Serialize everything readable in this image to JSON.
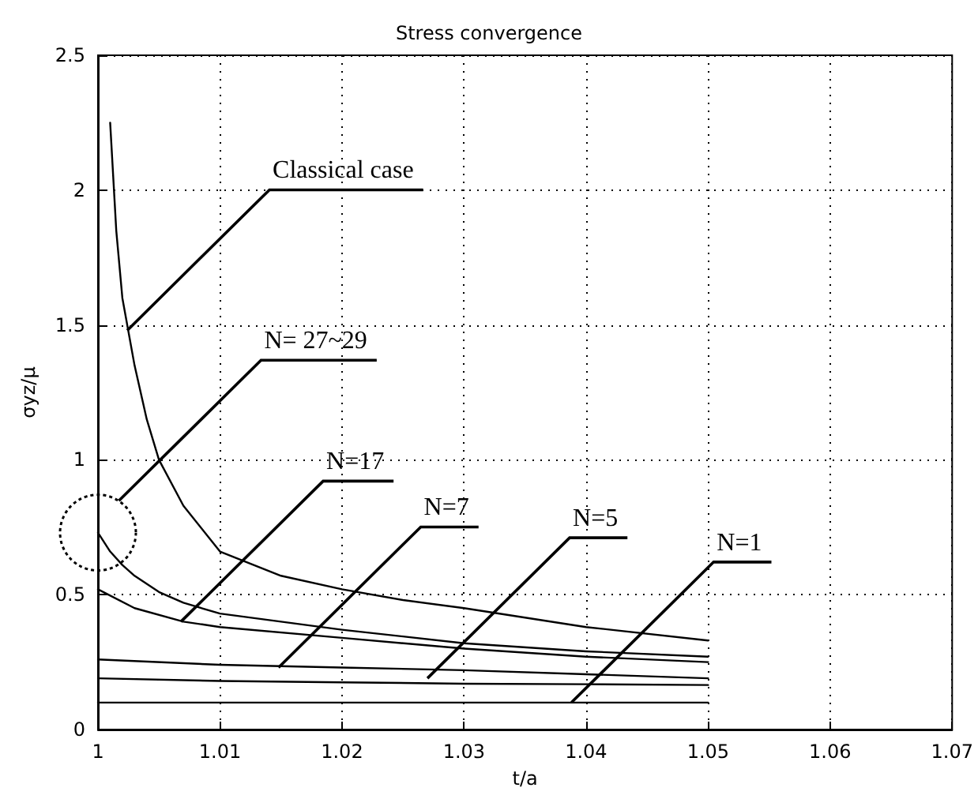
{
  "chart_data": {
    "type": "line",
    "title": "Stress convergence",
    "xlabel": "t/a",
    "ylabel": "σyz/μ",
    "xlim": [
      1,
      1.07
    ],
    "xticks": [
      1,
      1.01,
      1.02,
      1.03,
      1.04,
      1.05,
      1.06,
      1.07
    ],
    "ylim": [
      0,
      2.5
    ],
    "yticks": [
      0,
      0.5,
      1,
      1.5,
      2,
      2.5
    ],
    "grid": true,
    "marker": "none",
    "line_style": "solid",
    "series": [
      {
        "color": "#000000",
        "x": [
          1.001,
          1.0015,
          1.002,
          1.003,
          1.004,
          1.005,
          1.007,
          1.01,
          1.015,
          1.02,
          1.025,
          1.03,
          1.04,
          1.05
        ],
        "values": [
          2.25,
          1.85,
          1.6,
          1.35,
          1.15,
          1.0,
          0.83,
          0.66,
          0.57,
          0.52,
          0.48,
          0.45,
          0.38,
          0.33
        ]
      },
      {
        "color": "#000000",
        "x": [
          1.0,
          1.001,
          1.002,
          1.003,
          1.005,
          1.007,
          1.01,
          1.015,
          1.02,
          1.025,
          1.03,
          1.04,
          1.05
        ],
        "values": [
          0.73,
          0.66,
          0.61,
          0.57,
          0.51,
          0.47,
          0.43,
          0.4,
          0.37,
          0.345,
          0.32,
          0.29,
          0.27
        ]
      },
      {
        "color": "#000000",
        "x": [
          1.0,
          1.003,
          1.007,
          1.01,
          1.02,
          1.03,
          1.04,
          1.05
        ],
        "values": [
          0.52,
          0.45,
          0.4,
          0.38,
          0.34,
          0.3,
          0.27,
          0.25
        ]
      },
      {
        "color": "#000000",
        "x": [
          1.0,
          1.01,
          1.02,
          1.03,
          1.04,
          1.05
        ],
        "values": [
          0.26,
          0.24,
          0.23,
          0.22,
          0.205,
          0.19
        ]
      },
      {
        "color": "#000000",
        "x": [
          1.0,
          1.01,
          1.02,
          1.03,
          1.04,
          1.05
        ],
        "values": [
          0.19,
          0.18,
          0.175,
          0.17,
          0.168,
          0.165
        ]
      },
      {
        "color": "#000000",
        "x": [
          1.0,
          1.05
        ],
        "values": [
          0.1,
          0.1
        ]
      }
    ],
    "annotations": [
      {
        "text": "Classical case",
        "x": 1.0024,
        "y": 1.48
      },
      "N= 27~29",
      {
        "text": "N=17",
        "x": 1.0068,
        "y": 0.4
      },
      {
        "text": "N=7",
        "x": 1.0148,
        "y": 0.23
      },
      {
        "text": "N=5",
        "x": 1.027,
        "y": 0.19
      },
      {
        "text": "N=1",
        "x": 1.0388,
        "y": 0.1
      }
    ]
  }
}
